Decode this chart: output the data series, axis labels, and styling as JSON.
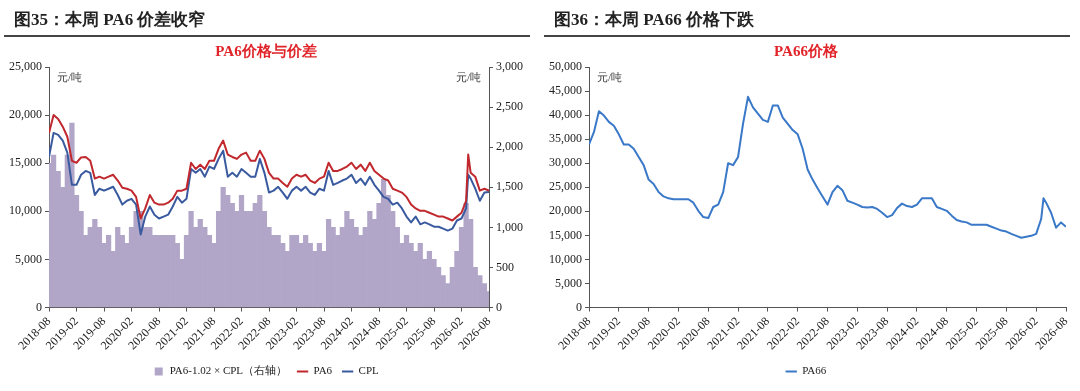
{
  "chart_data": [
    {
      "type": "line",
      "title": "图35：本周 PA6 价差收窄",
      "subtitle": "PA6价格与价差",
      "ylabel": "元/吨",
      "y2label": "元/吨",
      "legend": "bottom",
      "x": [
        "2018-08",
        "2018-09",
        "2018-10",
        "2018-11",
        "2018-12",
        "2019-01",
        "2019-02",
        "2019-03",
        "2019-04",
        "2019-05",
        "2019-06",
        "2019-07",
        "2019-08",
        "2019-09",
        "2019-10",
        "2019-11",
        "2019-12",
        "2020-01",
        "2020-02",
        "2020-03",
        "2020-04",
        "2020-05",
        "2020-06",
        "2020-07",
        "2020-08",
        "2020-09",
        "2020-10",
        "2020-11",
        "2020-12",
        "2021-01",
        "2021-02",
        "2021-03",
        "2021-04",
        "2021-05",
        "2021-06",
        "2021-07",
        "2021-08",
        "2021-09",
        "2021-10",
        "2021-11",
        "2021-12",
        "2022-01",
        "2022-02",
        "2022-03",
        "2022-04",
        "2022-05",
        "2022-06",
        "2022-07",
        "2022-08",
        "2022-09",
        "2022-10",
        "2022-11",
        "2022-12",
        "2023-01",
        "2023-02",
        "2023-03",
        "2023-04",
        "2023-05",
        "2023-06",
        "2023-07",
        "2023-08",
        "2023-09",
        "2023-10",
        "2023-11",
        "2023-12",
        "2024-01",
        "2024-02",
        "2024-03",
        "2024-04",
        "2024-05",
        "2024-06",
        "2024-07",
        "2024-08",
        "2024-09",
        "2024-10",
        "2024-11",
        "2024-12",
        "2025-01",
        "2025-02",
        "2025-03",
        "2025-04",
        "2025-05",
        "2025-06",
        "2025-07",
        "2025-08",
        "2025-09",
        "2025-10",
        "2025-11",
        "2025-12",
        "2026-01",
        "2026-02",
        "2026-03",
        "2026-03-15",
        "2026-04",
        "2026-05",
        "2026-06",
        "2026-07",
        "2026-08"
      ],
      "series": [
        {
          "name": "PA6-1.02 × CPL（右轴）",
          "type": "bar",
          "axis": "y2",
          "color": "#b1a6c8",
          "x": [
            "2018-08",
            "2018-09",
            "2018-10",
            "2018-11",
            "2018-12",
            "2019-01",
            "2019-02",
            "2019-03",
            "2019-04",
            "2019-05",
            "2019-06",
            "2019-07",
            "2019-08",
            "2019-09",
            "2019-10",
            "2019-11",
            "2019-12",
            "2020-01",
            "2020-02",
            "2020-03",
            "2020-04",
            "2020-05",
            "2020-06",
            "2020-07",
            "2020-08",
            "2020-09",
            "2020-10",
            "2020-11",
            "2020-12",
            "2021-01",
            "2021-02",
            "2021-03",
            "2021-04",
            "2021-05",
            "2021-06",
            "2021-07",
            "2021-08",
            "2021-09",
            "2021-10",
            "2021-11",
            "2021-12",
            "2022-01",
            "2022-02",
            "2022-03",
            "2022-04",
            "2022-05",
            "2022-06",
            "2022-07",
            "2022-08",
            "2022-09",
            "2022-10",
            "2022-11",
            "2022-12",
            "2023-01",
            "2023-02",
            "2023-03",
            "2023-04",
            "2023-05",
            "2023-06",
            "2023-07",
            "2023-08",
            "2023-09",
            "2023-10",
            "2023-11",
            "2023-12",
            "2024-01",
            "2024-02",
            "2024-03",
            "2024-04",
            "2024-05",
            "2024-06",
            "2024-07",
            "2024-08",
            "2024-09",
            "2024-10",
            "2024-11",
            "2024-12",
            "2025-01",
            "2025-02",
            "2025-03",
            "2025-04",
            "2025-05",
            "2025-06",
            "2025-07",
            "2025-08",
            "2025-09",
            "2025-10",
            "2025-11",
            "2025-12",
            "2026-01",
            "2026-02",
            "2026-03",
            "2026-04",
            "2026-05",
            "2026-06",
            "2026-07",
            "2026-08"
          ],
          "values": [
            1800,
            1900,
            1700,
            1500,
            1900,
            2300,
            1400,
            1200,
            900,
            1000,
            1100,
            1000,
            800,
            900,
            700,
            1000,
            900,
            800,
            1000,
            1200,
            1200,
            1000,
            1000,
            900,
            900,
            900,
            900,
            900,
            800,
            600,
            900,
            1200,
            1000,
            1100,
            1000,
            900,
            800,
            1200,
            1500,
            1400,
            1300,
            1200,
            1400,
            1200,
            1200,
            1300,
            1400,
            1200,
            1000,
            900,
            900,
            800,
            700,
            900,
            900,
            800,
            900,
            800,
            700,
            800,
            700,
            1100,
            1000,
            900,
            1000,
            1200,
            1100,
            1000,
            900,
            1000,
            1200,
            1100,
            1300,
            1600,
            1400,
            1200,
            1000,
            800,
            900,
            800,
            700,
            800,
            600,
            700,
            600,
            500,
            400,
            300,
            500,
            700,
            1000,
            1300,
            1100,
            500,
            400,
            300,
            200
          ]
        },
        {
          "name": "PA6",
          "color": "#c0282d",
          "values": [
            18150,
            20000,
            19600,
            18800,
            17750,
            15250,
            15050,
            15600,
            15650,
            15250,
            13400,
            13600,
            13400,
            13600,
            13800,
            13200,
            12450,
            12350,
            12150,
            11500,
            9250,
            10300,
            11700,
            10900,
            10700,
            10700,
            10900,
            11300,
            12150,
            12150,
            12350,
            15050,
            14400,
            14850,
            14400,
            15250,
            15250,
            16500,
            17350,
            15900,
            15650,
            15450,
            15900,
            16100,
            15250,
            15250,
            16300,
            15450,
            14000,
            13400,
            13400,
            12950,
            12550,
            13400,
            13800,
            13600,
            13800,
            13200,
            12950,
            13400,
            13600,
            15050,
            14200,
            14200,
            14400,
            14650,
            15050,
            14400,
            14850,
            14200,
            15050,
            14200,
            13800,
            13400,
            13200,
            12350,
            12150,
            11950,
            11500,
            10700,
            10300,
            10050,
            10050,
            9850,
            9650,
            9450,
            9450,
            9250,
            9050,
            9450,
            9850,
            11100,
            15900,
            14000,
            13600,
            12150,
            12350,
            12150
          ]
        },
        {
          "name": "CPL",
          "color": "#3a5aa0",
          "values": [
            15650,
            18150,
            17950,
            17350,
            16100,
            12750,
            12750,
            13800,
            14200,
            14000,
            11700,
            12350,
            12150,
            12350,
            12550,
            11700,
            10700,
            11100,
            11300,
            10700,
            7600,
            9450,
            10500,
            9650,
            9250,
            9450,
            9650,
            10500,
            11500,
            10900,
            11300,
            14400,
            14000,
            14400,
            13600,
            14650,
            14400,
            15450,
            16300,
            13600,
            14000,
            13600,
            14400,
            14000,
            13600,
            13600,
            15450,
            14000,
            11950,
            12150,
            12550,
            11950,
            11300,
            12150,
            12550,
            12150,
            12550,
            11950,
            11700,
            12350,
            12150,
            14200,
            12750,
            12950,
            13200,
            13400,
            13800,
            12950,
            13400,
            12750,
            13600,
            12750,
            12150,
            11500,
            11300,
            10700,
            10900,
            10300,
            9450,
            8850,
            9450,
            8650,
            8850,
            8650,
            8400,
            8400,
            8200,
            8000,
            8200,
            9050,
            9250,
            10300,
            13800,
            13400,
            12350,
            11100,
            11950,
            12000
          ]
        }
      ],
      "xlim": [
        "2018-08",
        "2026-08"
      ],
      "xticks": [
        "2018-08",
        "2019-02",
        "2019-08",
        "2020-02",
        "2020-08",
        "2021-02",
        "2021-08",
        "2022-02",
        "2022-08",
        "2023-02",
        "2023-08",
        "2024-02",
        "2024-08",
        "2025-02",
        "2025-08",
        "2026-02",
        "2026-08"
      ],
      "ylim": [
        0,
        25000
      ],
      "yticks": [
        0,
        {
          "value": 5000,
          "label": "5,000"
        },
        {
          "value": 10000,
          "label": "10,000"
        },
        {
          "value": 15000,
          "label": "15,000"
        },
        {
          "value": 20000,
          "label": "20,000"
        },
        {
          "value": 25000,
          "label": "25,000"
        }
      ],
      "y2lim": [
        0,
        3000
      ],
      "y2ticks": [
        0,
        500,
        {
          "value": 1000,
          "label": "1,000"
        },
        {
          "value": 1500,
          "label": "1,500"
        },
        {
          "value": 2000,
          "label": "2,000"
        },
        {
          "value": 2500,
          "label": "2,500"
        },
        {
          "value": 3000,
          "label": "3,000"
        }
      ]
    },
    {
      "type": "line",
      "title": "图36：本周 PA66 价格下跌",
      "subtitle": "PA66价格",
      "ylabel": "元/吨",
      "legend": "bottom",
      "x": [
        "2018-08",
        "2018-09",
        "2018-10",
        "2018-11",
        "2018-12",
        "2019-01",
        "2019-02",
        "2019-03",
        "2019-04",
        "2019-05",
        "2019-06",
        "2019-07",
        "2019-08",
        "2019-09",
        "2019-10",
        "2019-11",
        "2019-12",
        "2020-01",
        "2020-02",
        "2020-03",
        "2020-04",
        "2020-05",
        "2020-06",
        "2020-07",
        "2020-08",
        "2020-09",
        "2020-10",
        "2020-11",
        "2020-12",
        "2021-01",
        "2021-02",
        "2021-03",
        "2021-04",
        "2021-05",
        "2021-06",
        "2021-07",
        "2021-08",
        "2021-09",
        "2021-10",
        "2021-11",
        "2021-12",
        "2022-01",
        "2022-02",
        "2022-03",
        "2022-04",
        "2022-05",
        "2022-06",
        "2022-07",
        "2022-08",
        "2022-09",
        "2022-10",
        "2022-11",
        "2022-12",
        "2023-01",
        "2023-02",
        "2023-03",
        "2023-04",
        "2023-05",
        "2023-06",
        "2023-07",
        "2023-08",
        "2023-09",
        "2023-10",
        "2023-11",
        "2023-12",
        "2024-01",
        "2024-02",
        "2024-03",
        "2024-04",
        "2024-05",
        "2024-06",
        "2024-07",
        "2024-08",
        "2024-09",
        "2024-10",
        "2024-11",
        "2024-12",
        "2025-01",
        "2025-02",
        "2025-03",
        "2025-04",
        "2025-05",
        "2025-06",
        "2025-07",
        "2025-08",
        "2025-09",
        "2025-10",
        "2025-11",
        "2025-12",
        "2026-01",
        "2026-02",
        "2026-03",
        "2026-03-15",
        "2026-04",
        "2026-05",
        "2026-06",
        "2026-07",
        "2026-08"
      ],
      "series": [
        {
          "name": "PA66",
          "color": "#3a78c8",
          "values": [
            33900,
            36500,
            40800,
            39900,
            38600,
            37800,
            36000,
            33900,
            33900,
            33000,
            31300,
            29600,
            26600,
            25700,
            24000,
            23100,
            22700,
            22500,
            22500,
            22500,
            22500,
            21800,
            20100,
            18800,
            18600,
            20900,
            21400,
            24000,
            30000,
            29600,
            31300,
            38200,
            43800,
            41600,
            40300,
            39000,
            38600,
            42000,
            42000,
            39500,
            38200,
            36900,
            36000,
            33000,
            28700,
            26600,
            24800,
            23100,
            21400,
            24000,
            25300,
            24400,
            22200,
            21800,
            21400,
            20900,
            20800,
            20900,
            20500,
            19700,
            18800,
            19200,
            20700,
            21600,
            21100,
            20900,
            21400,
            22700,
            22700,
            22700,
            20900,
            20500,
            20100,
            19100,
            18200,
            17900,
            17700,
            17200,
            17200,
            17200,
            17200,
            16800,
            16400,
            16000,
            15800,
            15300,
            14900,
            14500,
            14700,
            14900,
            15300,
            18400,
            22700,
            21800,
            19700,
            16600,
            17700,
            16800
          ]
        }
      ],
      "xlim": [
        "2018-08",
        "2026-08"
      ],
      "xticks": [
        "2018-08",
        "2019-02",
        "2019-08",
        "2020-02",
        "2020-08",
        "2021-02",
        "2021-08",
        "2022-02",
        "2022-08",
        "2023-02",
        "2023-08",
        "2024-02",
        "2024-08",
        "2025-02",
        "2025-08",
        "2026-02",
        "2026-08"
      ],
      "ylim": [
        0,
        50000
      ],
      "yticks": [
        0,
        {
          "value": 5000,
          "label": "5,000"
        },
        {
          "value": 10000,
          "label": "10,000"
        },
        {
          "value": 15000,
          "label": "15,000"
        },
        {
          "value": 20000,
          "label": "20,000"
        },
        {
          "value": 25000,
          "label": "25,000"
        },
        {
          "value": 30000,
          "label": "30,000"
        },
        {
          "value": 35000,
          "label": "35,000"
        },
        {
          "value": 40000,
          "label": "40,000"
        },
        {
          "value": 45000,
          "label": "45,000"
        },
        {
          "value": 50000,
          "label": "50,000"
        }
      ]
    }
  ]
}
